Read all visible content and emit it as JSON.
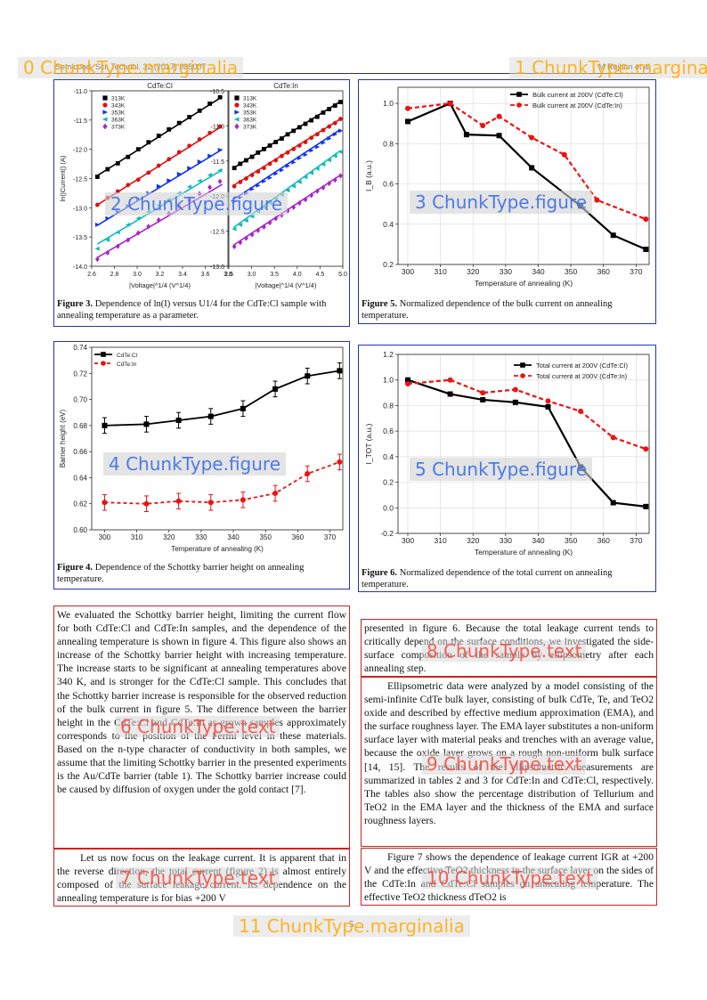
{
  "header": {
    "left": "Semicond. Sci. Technol. 32 (2017) 085007",
    "right": "M Rejhon et al"
  },
  "overlays": {
    "o0": "0  ChunkType.marginalia",
    "o1": "1  ChunkType.marginalia",
    "o2": "2  ChunkType.figure",
    "o3": "3  ChunkType.figure",
    "o4": "4  ChunkType.figure",
    "o5": "5  ChunkType.figure",
    "o6": "6  ChunkType.text",
    "o7": "7  ChunkType.text",
    "o8": "8  ChunkType.text",
    "o9": "9  ChunkType.text",
    "o10": "10  ChunkType.text",
    "o11": "11  ChunkType.marginalia"
  },
  "captions": {
    "fig3_label": "Figure 3.",
    "fig3_text": "Dependence of ln(I) versus U1/4 for the CdTe:Cl sample with annealing temperature as a parameter.",
    "fig5_label": "Figure 5.",
    "fig5_text": "Normalized dependence of the bulk current on annealing temperature.",
    "fig4_label": "Figure 4.",
    "fig4_text": "Dependence of the Schottky barrier height on annealing temperature.",
    "fig6_label": "Figure 6.",
    "fig6_text": "Normalized dependence of the total current on annealing temperature."
  },
  "chart_data": [
    {
      "id": "fig3a",
      "type": "scatter",
      "title": "CdTe:Cl",
      "xlabel": "|Voltage|^1/4 (V^1/4)",
      "ylabel": "ln(|Current|) (A)",
      "xlim": [
        2.6,
        3.8
      ],
      "ylim": [
        -14.0,
        -11.0
      ],
      "xticks": [
        2.6,
        2.8,
        3.0,
        3.2,
        3.4,
        3.6,
        3.8
      ],
      "yticks": [
        -14.0,
        -13.5,
        -13.0,
        -12.5,
        -12.0,
        -11.5,
        -11.0
      ],
      "legend": "top-left",
      "series": [
        {
          "name": "313K",
          "color": "#000000",
          "marker": "square",
          "fit": [
            [
              2.65,
              -12.45
            ],
            [
              3.75,
              -11.1
            ]
          ],
          "x": [
            2.65,
            2.74,
            2.83,
            2.92,
            3.01,
            3.1,
            3.19,
            3.28,
            3.37,
            3.46,
            3.55,
            3.64,
            3.73
          ],
          "y": [
            -12.47,
            -12.34,
            -12.24,
            -12.13,
            -12.0,
            -11.88,
            -11.77,
            -11.66,
            -11.55,
            -11.45,
            -11.34,
            -11.22,
            -11.11
          ]
        },
        {
          "name": "343K",
          "color": "#dd1111",
          "marker": "circle",
          "fit": [
            [
              2.65,
              -12.95
            ],
            [
              3.75,
              -11.6
            ]
          ],
          "x": [
            2.65,
            2.74,
            2.83,
            2.92,
            3.01,
            3.1,
            3.19,
            3.28,
            3.37,
            3.46,
            3.55,
            3.64,
            3.73
          ],
          "y": [
            -12.95,
            -12.83,
            -12.72,
            -12.61,
            -12.52,
            -12.4,
            -12.28,
            -12.17,
            -12.05,
            -11.94,
            -11.83,
            -11.72,
            -11.61
          ]
        },
        {
          "name": "353K",
          "color": "#1133ee",
          "marker": "triangle-right",
          "fit": [
            [
              2.65,
              -13.3
            ],
            [
              3.75,
              -12.0
            ]
          ],
          "x": [
            2.65,
            2.74,
            2.83,
            2.92,
            3.01,
            3.1,
            3.19,
            3.28,
            3.37,
            3.46,
            3.55,
            3.64,
            3.73
          ],
          "y": [
            -13.29,
            -13.18,
            -13.07,
            -12.97,
            -12.86,
            -12.75,
            -12.63,
            -12.53,
            -12.42,
            -12.32,
            -12.21,
            -12.11,
            -12.01
          ]
        },
        {
          "name": "363K",
          "color": "#11bbbb",
          "marker": "triangle-left",
          "fit": [
            [
              2.65,
              -13.62
            ],
            [
              3.75,
              -12.35
            ]
          ],
          "x": [
            2.65,
            2.74,
            2.83,
            2.92,
            3.01,
            3.1,
            3.19,
            3.28,
            3.37,
            3.46,
            3.55,
            3.64,
            3.73
          ],
          "y": [
            -13.7,
            -13.55,
            -13.42,
            -13.29,
            -13.18,
            -13.07,
            -12.96,
            -12.86,
            -12.75,
            -12.64,
            -12.54,
            -12.44,
            -12.36
          ]
        },
        {
          "name": "373K",
          "color": "#aa22cc",
          "marker": "diamond",
          "fit": [
            [
              2.65,
              -13.85
            ],
            [
              3.75,
              -12.6
            ]
          ],
          "x": [
            2.65,
            2.74,
            2.83,
            2.92,
            3.01,
            3.1,
            3.19,
            3.28,
            3.37,
            3.46,
            3.55,
            3.64,
            3.73
          ],
          "y": [
            -13.88,
            -13.77,
            -13.66,
            -13.55,
            -13.43,
            -13.32,
            -13.21,
            -13.1,
            -12.98,
            -12.87,
            -12.76,
            -12.65,
            -12.55
          ]
        }
      ]
    },
    {
      "id": "fig3b",
      "type": "scatter",
      "title": "CdTe:In",
      "xlabel": "|Voltage|^1/4 (V^1/4)",
      "ylabel": "",
      "xlim": [
        2.5,
        5.0
      ],
      "ylim": [
        -13.0,
        -10.5
      ],
      "xticks": [
        2.5,
        3.0,
        3.5,
        4.0,
        4.5,
        5.0
      ],
      "yticks": [
        -13.0,
        -12.5,
        -12.0,
        -11.5,
        -11.0,
        -10.5
      ],
      "legend": "top-left",
      "series": [
        {
          "name": "313K",
          "color": "#000000",
          "marker": "square",
          "fit": [
            [
              2.6,
              -11.6
            ],
            [
              4.95,
              -10.65
            ]
          ],
          "x": [
            2.62,
            2.75,
            2.88,
            3.01,
            3.14,
            3.27,
            3.4,
            3.53,
            3.66,
            3.79,
            3.92,
            4.05,
            4.18,
            4.31,
            4.44,
            4.57,
            4.7,
            4.83,
            4.95
          ],
          "y": [
            -11.6,
            -11.54,
            -11.49,
            -11.44,
            -11.38,
            -11.33,
            -11.28,
            -11.23,
            -11.18,
            -11.12,
            -11.07,
            -11.02,
            -10.97,
            -10.92,
            -10.87,
            -10.81,
            -10.76,
            -10.71,
            -10.66
          ]
        },
        {
          "name": "343K",
          "color": "#dd1111",
          "marker": "circle",
          "fit": [
            [
              2.6,
              -11.85
            ],
            [
              4.95,
              -10.9
            ]
          ],
          "x": [
            2.62,
            2.75,
            2.88,
            3.01,
            3.14,
            3.27,
            3.4,
            3.53,
            3.66,
            3.79,
            3.92,
            4.05,
            4.18,
            4.31,
            4.44,
            4.57,
            4.7,
            4.83,
            4.95
          ],
          "y": [
            -11.86,
            -11.8,
            -11.75,
            -11.7,
            -11.65,
            -11.6,
            -11.54,
            -11.49,
            -11.43,
            -11.38,
            -11.33,
            -11.28,
            -11.23,
            -11.17,
            -11.12,
            -11.06,
            -11.01,
            -10.96,
            -10.9
          ]
        },
        {
          "name": "353K",
          "color": "#1133ee",
          "marker": "triangle-right",
          "fit": [
            [
              2.6,
              -12.05
            ],
            [
              4.95,
              -11.05
            ]
          ],
          "x": [
            2.62,
            2.75,
            2.88,
            3.01,
            3.14,
            3.27,
            3.4,
            3.53,
            3.66,
            3.79,
            3.92,
            4.05,
            4.18,
            4.31,
            4.44,
            4.57,
            4.7,
            4.83,
            4.95
          ],
          "y": [
            -12.08,
            -12.02,
            -11.96,
            -11.9,
            -11.85,
            -11.79,
            -11.74,
            -11.68,
            -11.63,
            -11.57,
            -11.52,
            -11.46,
            -11.41,
            -11.35,
            -11.3,
            -11.24,
            -11.18,
            -11.12,
            -11.07
          ]
        },
        {
          "name": "363K",
          "color": "#11bbbb",
          "marker": "triangle-left",
          "fit": [
            [
              2.6,
              -12.45
            ],
            [
              4.95,
              -11.35
            ]
          ],
          "x": [
            2.62,
            2.75,
            2.88,
            3.01,
            3.14,
            3.27,
            3.4,
            3.53,
            3.66,
            3.79,
            3.92,
            4.05,
            4.18,
            4.31,
            4.44,
            4.57,
            4.7,
            4.83,
            4.95
          ],
          "y": [
            -12.47,
            -12.41,
            -12.35,
            -12.29,
            -12.22,
            -12.16,
            -12.1,
            -12.04,
            -11.98,
            -11.92,
            -11.86,
            -11.8,
            -11.73,
            -11.67,
            -11.61,
            -11.55,
            -11.49,
            -11.43,
            -11.37
          ]
        },
        {
          "name": "373K",
          "color": "#aa22cc",
          "marker": "diamond",
          "fit": [
            [
              2.6,
              -12.7
            ],
            [
              4.95,
              -11.7
            ]
          ],
          "x": [
            2.62,
            2.75,
            2.88,
            3.01,
            3.14,
            3.27,
            3.4,
            3.53,
            3.66,
            3.79,
            3.92,
            4.05,
            4.18,
            4.31,
            4.44,
            4.57,
            4.7,
            4.83,
            4.95
          ],
          "y": [
            -12.72,
            -12.66,
            -12.6,
            -12.55,
            -12.49,
            -12.44,
            -12.38,
            -12.32,
            -12.27,
            -12.21,
            -12.16,
            -12.1,
            -12.05,
            -11.99,
            -11.93,
            -11.88,
            -11.82,
            -11.77,
            -11.71
          ]
        }
      ]
    },
    {
      "id": "fig5",
      "type": "line",
      "title": "",
      "xlabel": "Temperature of annealing (K)",
      "ylabel": "I_B (a.u.)",
      "xlim": [
        297,
        374
      ],
      "ylim": [
        0.2,
        1.08
      ],
      "xticks": [
        300,
        310,
        320,
        330,
        340,
        350,
        360,
        370
      ],
      "yticks": [
        0.2,
        0.4,
        0.6,
        0.8,
        1.0
      ],
      "legend": "top-right",
      "series": [
        {
          "name": "Bulk current at 200V (CdTe:Cl)",
          "color": "#000000",
          "marker": "square",
          "dash": "",
          "x": [
            300,
            313,
            318,
            328,
            338,
            353,
            363,
            373
          ],
          "y": [
            0.91,
            1.0,
            0.845,
            0.84,
            0.68,
            0.49,
            0.345,
            0.275
          ]
        },
        {
          "name": "Bulk current at 200V (CdTe:In)",
          "color": "#ee1111",
          "marker": "circle",
          "dash": "5,3",
          "x": [
            300,
            313,
            323,
            328,
            338,
            348,
            358,
            373
          ],
          "y": [
            0.975,
            1.0,
            0.89,
            0.935,
            0.83,
            0.745,
            0.52,
            0.425
          ]
        }
      ]
    },
    {
      "id": "fig4",
      "type": "line",
      "title": "",
      "xlabel": "Temperature of annealing (K)",
      "ylabel": "Barrier height (eV)",
      "xlim": [
        296,
        374
      ],
      "ylim": [
        0.6,
        0.74
      ],
      "xticks": [
        300,
        310,
        320,
        330,
        340,
        350,
        360,
        370
      ],
      "yticks": [
        0.6,
        0.62,
        0.64,
        0.66,
        0.68,
        0.7,
        0.72,
        0.74
      ],
      "legend": "top-left",
      "series": [
        {
          "name": "CdTe:Cl",
          "color": "#000000",
          "marker": "square",
          "dash": "",
          "err": 0.006,
          "x": [
            300,
            313,
            323,
            333,
            343,
            353,
            363,
            373
          ],
          "y": [
            0.68,
            0.681,
            0.684,
            0.687,
            0.693,
            0.708,
            0.718,
            0.722
          ]
        },
        {
          "name": "CdTe:In",
          "color": "#ee1111",
          "marker": "circle",
          "dash": "4,3",
          "err": 0.006,
          "x": [
            300,
            313,
            323,
            333,
            343,
            353,
            363,
            373
          ],
          "y": [
            0.621,
            0.62,
            0.622,
            0.621,
            0.623,
            0.628,
            0.643,
            0.652
          ]
        }
      ]
    },
    {
      "id": "fig6",
      "type": "line",
      "title": "",
      "xlabel": "Temperature of annealing (K)",
      "ylabel": "I_TOT (a.u.)",
      "xlim": [
        297,
        374
      ],
      "ylim": [
        -0.2,
        1.2
      ],
      "xticks": [
        300,
        310,
        320,
        330,
        340,
        350,
        360,
        370
      ],
      "yticks": [
        -0.2,
        0.0,
        0.2,
        0.4,
        0.6,
        0.8,
        1.0,
        1.2
      ],
      "legend": "top-right",
      "series": [
        {
          "name": "Total current at 200V (CdTe:Cl)",
          "color": "#000000",
          "marker": "square",
          "dash": "",
          "x": [
            300,
            313,
            323,
            333,
            343,
            353,
            363,
            373
          ],
          "y": [
            1.0,
            0.89,
            0.845,
            0.825,
            0.79,
            0.32,
            0.04,
            0.01
          ]
        },
        {
          "name": "Total current at 200V (CdTe:In)",
          "color": "#ee1111",
          "marker": "circle",
          "dash": "5,3",
          "x": [
            300,
            313,
            323,
            333,
            343,
            353,
            363,
            373
          ],
          "y": [
            0.97,
            1.0,
            0.9,
            0.925,
            0.835,
            0.755,
            0.55,
            0.46
          ]
        }
      ]
    }
  ],
  "text": {
    "left_p1": "We evaluated the Schottky barrier height, limiting the current flow for both CdTe:Cl and CdTe:In samples, and the dependence of the annealing temperature is shown in figure 4. This figure also shows an increase of the Schottky barrier height with increasing temperature. The increase starts to be significant at annealing temperatures above 340 K, and is stronger for the CdTe:Cl sample. This concludes that the Schottky barrier increase is responsible for the observed reduction of the bulk current in figure 5. The difference between the barrier height in the CdTe:Cl and CdTe:In as-grown samples approximately corresponds to the position of the Fermi level in these materials. Based on the n-type character of conductivity in both samples, we assume that the limiting Schottky barrier in the presented experiments is the Au/CdTe barrier (table 1). The Schottky barrier increase could be caused by diffusion of oxygen under the gold contact [7].",
    "left_p2": "Let us now focus on the leakage current. It is apparent that in the reverse direction, the total current (figure 2) is almost entirely composed of the surface leakage current. Its dependence on the annealing temperature is for bias +200 V",
    "right_p1": "presented in figure 6. Because the total leakage current tends to critically depend on the surface conditions, we investigated the side-surface composition of the sample by ellipsometry after each annealing step.",
    "right_p2": "Ellipsometric data were analyzed by a model consisting of the semi-infinite CdTe bulk layer, consisting of bulk CdTe, Te, and TeO2 oxide and described by effective medium approximation (EMA), and the surface roughness layer. The EMA layer substitutes a non-uniform surface layer with material peaks and trenches with an average value, because the oxide layer grows on a rough non-uniform bulk surface [14, 15]. The results of the ellipsometric measurements are summarized in tables 2 and 3 for CdTe:In and CdTe:Cl, respectively. The tables also show the percentage distribution of Tellurium and TeO2 in the EMA layer and the thickness of the EMA and surface roughness layers.",
    "right_p3": "Figure 7 shows the dependence of leakage current IGR at +200 V and the effective TeO2 thickness in the surface layer on the sides of the CdTe:In and CdTe:Cl samples on annealing temperature. The effective TeO2 thickness dTeO2 is"
  },
  "page_number": "5"
}
